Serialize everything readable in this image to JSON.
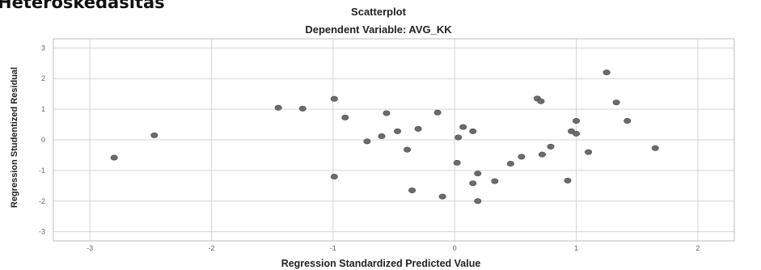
{
  "heading": "Heteroskedasitas",
  "chart_data": {
    "type": "scatter",
    "title": "Scatterplot",
    "subtitle": "Dependent Variable: AVG_KK",
    "xlabel": "Regression Standardized Predicted Value",
    "ylabel": "Regression Studentized Residual",
    "xlim": [
      -3.3,
      2.3
    ],
    "ylim": [
      -3.3,
      3.3
    ],
    "xticks": [
      -3,
      -2,
      -1,
      0,
      1,
      2
    ],
    "yticks": [
      3,
      2,
      1,
      0,
      -1,
      -2,
      -3
    ],
    "grid": true,
    "marker_color": "#6b6b6b",
    "points": [
      {
        "x": -2.8,
        "y": -0.58
      },
      {
        "x": -2.47,
        "y": 0.15
      },
      {
        "x": -1.45,
        "y": 1.05
      },
      {
        "x": -1.25,
        "y": 1.02
      },
      {
        "x": -0.99,
        "y": 1.34
      },
      {
        "x": -0.99,
        "y": -1.2
      },
      {
        "x": -0.9,
        "y": 0.73
      },
      {
        "x": -0.72,
        "y": -0.05
      },
      {
        "x": -0.6,
        "y": 0.12
      },
      {
        "x": -0.56,
        "y": 0.87
      },
      {
        "x": -0.47,
        "y": 0.28
      },
      {
        "x": -0.39,
        "y": -0.32
      },
      {
        "x": -0.35,
        "y": -1.65
      },
      {
        "x": -0.3,
        "y": 0.36
      },
      {
        "x": -0.14,
        "y": 0.89
      },
      {
        "x": -0.1,
        "y": -1.85
      },
      {
        "x": 0.02,
        "y": -0.75
      },
      {
        "x": 0.03,
        "y": 0.08
      },
      {
        "x": 0.07,
        "y": 0.42
      },
      {
        "x": 0.15,
        "y": 0.28
      },
      {
        "x": 0.15,
        "y": -1.42
      },
      {
        "x": 0.19,
        "y": -1.1
      },
      {
        "x": 0.19,
        "y": -2.0
      },
      {
        "x": 0.33,
        "y": -1.35
      },
      {
        "x": 0.46,
        "y": -0.78
      },
      {
        "x": 0.55,
        "y": -0.55
      },
      {
        "x": 0.68,
        "y": 1.35
      },
      {
        "x": 0.71,
        "y": 1.26
      },
      {
        "x": 0.72,
        "y": -0.48
      },
      {
        "x": 0.79,
        "y": -0.22
      },
      {
        "x": 0.93,
        "y": -1.33
      },
      {
        "x": 0.96,
        "y": 0.28
      },
      {
        "x": 1.0,
        "y": 0.62
      },
      {
        "x": 1.0,
        "y": 0.2
      },
      {
        "x": 1.1,
        "y": -0.4
      },
      {
        "x": 1.25,
        "y": 2.2
      },
      {
        "x": 1.33,
        "y": 1.22
      },
      {
        "x": 1.42,
        "y": 0.62
      },
      {
        "x": 1.65,
        "y": -0.27
      }
    ]
  }
}
